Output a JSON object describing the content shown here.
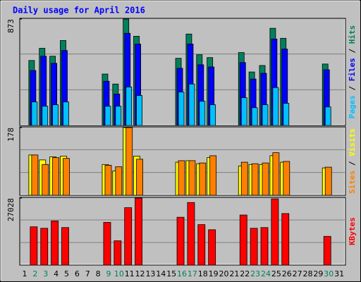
{
  "title": "Daily usage for April 2016",
  "legend_separator": "/",
  "categories": [
    "1",
    "2",
    "3",
    "4",
    "5",
    "6",
    "7",
    "8",
    "9",
    "10",
    "11",
    "12",
    "13",
    "14",
    "15",
    "16",
    "17",
    "18",
    "19",
    "20",
    "21",
    "22",
    "23",
    "24",
    "25",
    "26",
    "27",
    "28",
    "29",
    "30",
    "31"
  ],
  "category_colors": [
    "#000000",
    "#00805c",
    "#00805c",
    "#000000",
    "#000000",
    "#000000",
    "#000000",
    "#000000",
    "#00805c",
    "#00805c",
    "#000000",
    "#000000",
    "#000000",
    "#000000",
    "#000000",
    "#00805c",
    "#00805c",
    "#000000",
    "#000000",
    "#000000",
    "#000000",
    "#000000",
    "#00805c",
    "#00805c",
    "#000000",
    "#000000",
    "#000000",
    "#000000",
    "#000000",
    "#00805c",
    "#000000"
  ],
  "chart_data": [
    {
      "type": "bar",
      "ylim": [
        0,
        873
      ],
      "yticks": [
        873
      ],
      "series": [
        {
          "name": "Hits",
          "color": "#00805c",
          "values": [
            0,
            533,
            633,
            568,
            697,
            0,
            0,
            0,
            422,
            340,
            873,
            732,
            0,
            0,
            0,
            551,
            750,
            580,
            557,
            0,
            0,
            598,
            439,
            492,
            797,
            715,
            0,
            0,
            0,
            504,
            0
          ]
        },
        {
          "name": "Files",
          "color": "#0000ff",
          "values": [
            0,
            451,
            568,
            510,
            615,
            0,
            0,
            0,
            363,
            258,
            756,
            668,
            0,
            0,
            0,
            469,
            668,
            498,
            480,
            0,
            0,
            516,
            381,
            428,
            709,
            627,
            0,
            0,
            0,
            457,
            0
          ]
        },
        {
          "name": "Pages",
          "color": "#00c0ff",
          "values": [
            0,
            193,
            158,
            170,
            193,
            0,
            0,
            0,
            158,
            158,
            316,
            246,
            0,
            0,
            0,
            275,
            340,
            199,
            170,
            0,
            0,
            228,
            146,
            170,
            311,
            182,
            0,
            0,
            0,
            152,
            0
          ]
        }
      ]
    },
    {
      "type": "bar",
      "ylim": [
        0,
        178
      ],
      "yticks": [
        178
      ],
      "series": [
        {
          "name": "Visits",
          "color": "#ffff00",
          "values": [
            0,
            106,
            93,
            101,
            103,
            0,
            0,
            0,
            81,
            64,
            178,
            103,
            0,
            0,
            0,
            87,
            91,
            83,
            99,
            0,
            0,
            77,
            81,
            81,
            104,
            87,
            0,
            0,
            0,
            72,
            0
          ]
        },
        {
          "name": "Sites",
          "color": "#ff8000",
          "values": [
            0,
            106,
            81,
            99,
            97,
            0,
            0,
            0,
            79,
            75,
            178,
            95,
            0,
            0,
            0,
            91,
            91,
            85,
            104,
            0,
            0,
            87,
            83,
            85,
            112,
            89,
            0,
            0,
            0,
            74,
            0
          ]
        }
      ]
    },
    {
      "type": "bar",
      "ylim": [
        0,
        27028
      ],
      "yticks": [
        27028
      ],
      "series": [
        {
          "name": "KBytes",
          "color": "#ff0000",
          "values": [
            0,
            15445,
            14850,
            17820,
            15150,
            0,
            0,
            0,
            17230,
            9800,
            23170,
            27028,
            0,
            0,
            0,
            19300,
            25250,
            16330,
            14260,
            0,
            0,
            20200,
            14850,
            15150,
            26730,
            20790,
            0,
            0,
            0,
            11590,
            0
          ]
        }
      ]
    }
  ]
}
